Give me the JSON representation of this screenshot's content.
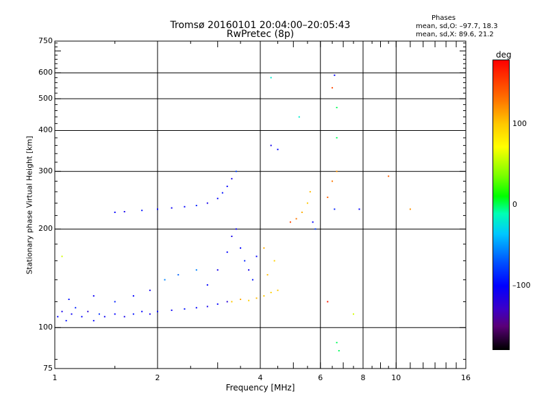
{
  "title_line1": "Tromsø 20160101 20:04:00–20:05:43",
  "title_line2": "RwPretec (8p)",
  "phases": {
    "heading": "Phases",
    "o_line": "mean, sd,O: –97.7, 18.3",
    "x_line": "mean, sd,X:  89.6, 21.2"
  },
  "colorbar": {
    "label": "deg",
    "ticks": [
      {
        "value": 100,
        "label": "100"
      },
      {
        "value": 0,
        "label": "0"
      },
      {
        "value": -100,
        "label": "–100"
      }
    ],
    "range": [
      -180,
      180
    ]
  },
  "chart_data": {
    "type": "scatter",
    "xlabel": "Frequency [MHz]",
    "ylabel": "Stationary phase Virtual Height [km]",
    "xscale": "log",
    "yscale": "log",
    "xlim": [
      1,
      16
    ],
    "ylim": [
      75,
      750
    ],
    "xticks": [
      {
        "value": 1,
        "label": "1"
      },
      {
        "value": 2,
        "label": "2"
      },
      {
        "value": 4,
        "label": "4"
      },
      {
        "value": 6,
        "label": "6"
      },
      {
        "value": 8,
        "label": "8"
      },
      {
        "value": 10,
        "label": "10"
      },
      {
        "value": 16,
        "label": "16"
      }
    ],
    "yticks": [
      {
        "value": 75,
        "label": "75"
      },
      {
        "value": 100,
        "label": "100"
      },
      {
        "value": 200,
        "label": "200"
      },
      {
        "value": 300,
        "label": "300"
      },
      {
        "value": 400,
        "label": "400"
      },
      {
        "value": 500,
        "label": "500"
      },
      {
        "value": 600,
        "label": "600"
      },
      {
        "value": 750,
        "label": "750"
      }
    ],
    "grid_x": [
      2,
      4,
      6,
      8,
      10
    ],
    "grid_y": [
      100,
      200,
      300,
      400,
      500,
      600
    ],
    "colorbar_label": "deg",
    "points": [
      {
        "x": 1.02,
        "y": 108,
        "phase": -100
      },
      {
        "x": 1.05,
        "y": 112,
        "phase": -110
      },
      {
        "x": 1.08,
        "y": 105,
        "phase": -95
      },
      {
        "x": 1.12,
        "y": 110,
        "phase": -105
      },
      {
        "x": 1.15,
        "y": 115,
        "phase": -90
      },
      {
        "x": 1.2,
        "y": 108,
        "phase": -100
      },
      {
        "x": 1.25,
        "y": 112,
        "phase": -120
      },
      {
        "x": 1.3,
        "y": 105,
        "phase": -100
      },
      {
        "x": 1.35,
        "y": 110,
        "phase": -85
      },
      {
        "x": 1.4,
        "y": 108,
        "phase": -105
      },
      {
        "x": 1.5,
        "y": 110,
        "phase": -100
      },
      {
        "x": 1.6,
        "y": 108,
        "phase": -110
      },
      {
        "x": 1.7,
        "y": 110,
        "phase": -95
      },
      {
        "x": 1.8,
        "y": 112,
        "phase": -100
      },
      {
        "x": 1.9,
        "y": 110,
        "phase": -110
      },
      {
        "x": 2.0,
        "y": 112,
        "phase": -100
      },
      {
        "x": 2.2,
        "y": 113,
        "phase": -105
      },
      {
        "x": 2.4,
        "y": 114,
        "phase": -95
      },
      {
        "x": 2.6,
        "y": 115,
        "phase": -100
      },
      {
        "x": 2.8,
        "y": 116,
        "phase": -110
      },
      {
        "x": 3.0,
        "y": 118,
        "phase": -100
      },
      {
        "x": 3.2,
        "y": 120,
        "phase": -120
      },
      {
        "x": 1.1,
        "y": 122,
        "phase": -95
      },
      {
        "x": 1.3,
        "y": 125,
        "phase": -105
      },
      {
        "x": 1.5,
        "y": 120,
        "phase": -90
      },
      {
        "x": 1.7,
        "y": 125,
        "phase": -100
      },
      {
        "x": 1.9,
        "y": 130,
        "phase": -110
      },
      {
        "x": 2.1,
        "y": 140,
        "phase": -60
      },
      {
        "x": 2.3,
        "y": 145,
        "phase": -70
      },
      {
        "x": 2.6,
        "y": 150,
        "phase": -60
      },
      {
        "x": 2.8,
        "y": 135,
        "phase": -100
      },
      {
        "x": 3.0,
        "y": 150,
        "phase": -110
      },
      {
        "x": 3.2,
        "y": 170,
        "phase": -100
      },
      {
        "x": 3.3,
        "y": 190,
        "phase": -110
      },
      {
        "x": 3.4,
        "y": 200,
        "phase": -105
      },
      {
        "x": 3.5,
        "y": 175,
        "phase": -100
      },
      {
        "x": 3.6,
        "y": 160,
        "phase": -90
      },
      {
        "x": 3.7,
        "y": 150,
        "phase": -110
      },
      {
        "x": 3.8,
        "y": 140,
        "phase": -95
      },
      {
        "x": 3.9,
        "y": 165,
        "phase": -100
      },
      {
        "x": 3.3,
        "y": 120,
        "phase": 100
      },
      {
        "x": 3.5,
        "y": 122,
        "phase": 110
      },
      {
        "x": 3.7,
        "y": 121,
        "phase": 95
      },
      {
        "x": 3.9,
        "y": 123,
        "phase": 105
      },
      {
        "x": 4.1,
        "y": 125,
        "phase": 100
      },
      {
        "x": 4.3,
        "y": 128,
        "phase": 95
      },
      {
        "x": 4.5,
        "y": 130,
        "phase": 100
      },
      {
        "x": 4.2,
        "y": 145,
        "phase": 105
      },
      {
        "x": 4.4,
        "y": 160,
        "phase": 95
      },
      {
        "x": 4.1,
        "y": 175,
        "phase": 110
      },
      {
        "x": 1.5,
        "y": 225,
        "phase": -100
      },
      {
        "x": 1.6,
        "y": 226,
        "phase": -110
      },
      {
        "x": 1.8,
        "y": 228,
        "phase": -95
      },
      {
        "x": 2.0,
        "y": 230,
        "phase": -100
      },
      {
        "x": 2.2,
        "y": 232,
        "phase": -105
      },
      {
        "x": 2.4,
        "y": 234,
        "phase": -100
      },
      {
        "x": 2.6,
        "y": 236,
        "phase": -90
      },
      {
        "x": 2.8,
        "y": 240,
        "phase": -110
      },
      {
        "x": 3.0,
        "y": 248,
        "phase": -100
      },
      {
        "x": 3.1,
        "y": 258,
        "phase": -95
      },
      {
        "x": 3.2,
        "y": 270,
        "phase": -100
      },
      {
        "x": 3.3,
        "y": 285,
        "phase": -110
      },
      {
        "x": 3.4,
        "y": 300,
        "phase": -80
      },
      {
        "x": 4.5,
        "y": 350,
        "phase": -100
      },
      {
        "x": 4.3,
        "y": 360,
        "phase": -110
      },
      {
        "x": 4.9,
        "y": 210,
        "phase": 150
      },
      {
        "x": 5.1,
        "y": 215,
        "phase": 130
      },
      {
        "x": 5.3,
        "y": 225,
        "phase": 110
      },
      {
        "x": 5.5,
        "y": 240,
        "phase": 100
      },
      {
        "x": 5.6,
        "y": 260,
        "phase": 105
      },
      {
        "x": 5.7,
        "y": 210,
        "phase": -100
      },
      {
        "x": 5.8,
        "y": 200,
        "phase": -80
      },
      {
        "x": 6.3,
        "y": 250,
        "phase": 140
      },
      {
        "x": 6.5,
        "y": 280,
        "phase": 130
      },
      {
        "x": 6.7,
        "y": 300,
        "phase": 120
      },
      {
        "x": 6.6,
        "y": 230,
        "phase": -90
      },
      {
        "x": 6.6,
        "y": 590,
        "phase": -100
      },
      {
        "x": 6.5,
        "y": 540,
        "phase": 150
      },
      {
        "x": 6.7,
        "y": 470,
        "phase": 0
      },
      {
        "x": 6.7,
        "y": 380,
        "phase": 0
      },
      {
        "x": 7.8,
        "y": 230,
        "phase": -100
      },
      {
        "x": 9.5,
        "y": 290,
        "phase": 140
      },
      {
        "x": 11,
        "y": 230,
        "phase": 120
      },
      {
        "x": 6.3,
        "y": 120,
        "phase": 170
      },
      {
        "x": 7.5,
        "y": 110,
        "phase": 60
      },
      {
        "x": 6.8,
        "y": 85,
        "phase": 0
      },
      {
        "x": 6.7,
        "y": 90,
        "phase": 0
      },
      {
        "x": 5.2,
        "y": 440,
        "phase": -20
      },
      {
        "x": 4.3,
        "y": 580,
        "phase": -20
      },
      {
        "x": 1.05,
        "y": 165,
        "phase": 60
      }
    ]
  }
}
